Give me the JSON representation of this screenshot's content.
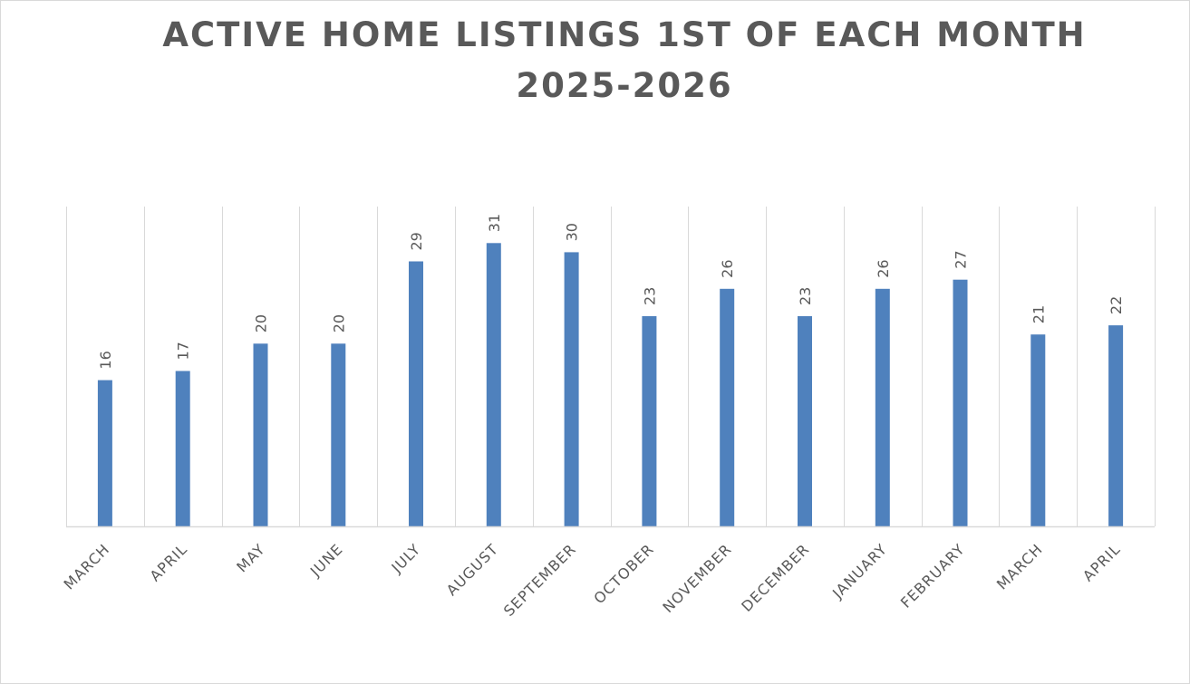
{
  "chart_data": {
    "type": "bar",
    "title": [
      "ACTIVE HOME LISTINGS 1ST OF EACH MONTH",
      "2025-2026"
    ],
    "xlabel": "",
    "ylabel": "",
    "categories": [
      "MARCH",
      "APRIL",
      "MAY",
      "JUNE",
      "JULY",
      "AUGUST",
      "SEPTEMBER",
      "OCTOBER",
      "NOVEMBER",
      "DECEMBER",
      "JANUARY",
      "FEBRUARY",
      "MARCH",
      "APRIL"
    ],
    "series": [
      {
        "values": [
          16,
          17,
          20,
          20,
          29,
          31,
          30,
          23,
          26,
          23,
          26,
          27,
          21,
          22
        ],
        "color": "#4f81bd"
      }
    ],
    "ylim": [
      0,
      35
    ],
    "y_axis_visible": false,
    "data_labels": true,
    "data_label_orientation": "vertical",
    "tick_label_orientation": "diagonal",
    "grid": "vertical category separators",
    "legend": "none",
    "colors": {
      "bar": "#4f81bd",
      "grid": "#d9d9d9",
      "axis": "#d9d9d9",
      "text": "#595959"
    }
  }
}
